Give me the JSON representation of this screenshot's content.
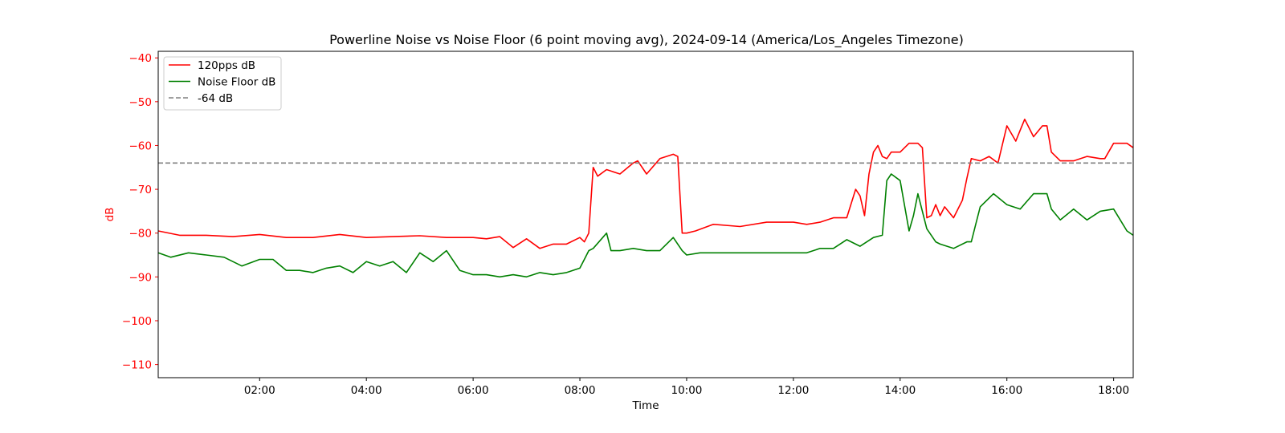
{
  "chart_data": {
    "type": "line",
    "title": "Powerline Noise vs Noise Floor (6 point moving avg), 2024-09-14 (America/Los_Angeles Timezone)",
    "xlabel": "Time",
    "ylabel": "dB",
    "xlim": [
      "00:06",
      "18:22"
    ],
    "ylim": [
      -113,
      -38.5
    ],
    "x_ticks": [
      "02:00",
      "04:00",
      "06:00",
      "08:00",
      "10:00",
      "12:00",
      "14:00",
      "16:00",
      "18:00"
    ],
    "y_ticks": [
      -40,
      -50,
      -60,
      -70,
      -80,
      -90,
      -100,
      -110
    ],
    "grid": false,
    "legend": "upper-left",
    "colors": {
      "ylabel_and_yticks": "#ff0000",
      "frame": "#000000"
    },
    "series": [
      {
        "name": "120pps dB",
        "color": "#ff0000",
        "style": "solid",
        "x": [
          "00:06",
          "00:30",
          "01:00",
          "01:30",
          "02:00",
          "02:30",
          "03:00",
          "03:30",
          "04:00",
          "04:30",
          "05:00",
          "05:30",
          "06:00",
          "06:15",
          "06:30",
          "06:45",
          "07:00",
          "07:15",
          "07:30",
          "07:45",
          "08:00",
          "08:05",
          "08:10",
          "08:15",
          "08:20",
          "08:30",
          "08:45",
          "09:00",
          "09:05",
          "09:15",
          "09:30",
          "09:45",
          "09:50",
          "09:55",
          "10:00",
          "10:10",
          "10:30",
          "11:00",
          "11:30",
          "12:00",
          "12:15",
          "12:30",
          "12:45",
          "13:00",
          "13:10",
          "13:15",
          "13:20",
          "13:25",
          "13:30",
          "13:35",
          "13:40",
          "13:45",
          "13:50",
          "14:00",
          "14:10",
          "14:20",
          "14:25",
          "14:30",
          "14:35",
          "14:40",
          "14:45",
          "14:50",
          "15:00",
          "15:10",
          "15:15",
          "15:20",
          "15:30",
          "15:40",
          "15:50",
          "16:00",
          "16:10",
          "16:15",
          "16:20",
          "16:30",
          "16:40",
          "16:45",
          "16:50",
          "17:00",
          "17:15",
          "17:30",
          "17:45",
          "17:50",
          "18:00",
          "18:15",
          "18:22"
        ],
        "y": [
          -79.5,
          -80.5,
          -80.5,
          -80.8,
          -80.3,
          -81,
          -81,
          -80.3,
          -81,
          -80.8,
          -80.6,
          -81,
          -81,
          -81.3,
          -80.8,
          -83.3,
          -81.3,
          -83.5,
          -82.5,
          -82.5,
          -81,
          -82,
          -80,
          -65,
          -67,
          -65.5,
          -66.5,
          -64,
          -63.5,
          -66.5,
          -63,
          -62,
          -62.5,
          -80,
          -80,
          -79.5,
          -78,
          -78.5,
          -77.5,
          -77.5,
          -78,
          -77.5,
          -76.5,
          -76.5,
          -70,
          -71.5,
          -76,
          -66.5,
          -61.5,
          -60,
          -62.5,
          -63,
          -61.5,
          -61.5,
          -59.5,
          -59.5,
          -60.5,
          -76.5,
          -76,
          -73.5,
          -76,
          -74,
          -76.5,
          -72.5,
          -67.5,
          -63,
          -63.5,
          -62.5,
          -64,
          -55.5,
          -59,
          -56.5,
          -54,
          -58,
          -55.5,
          -55.5,
          -61.5,
          -63.5,
          -63.5,
          -62.5,
          -63,
          -63,
          -59.5,
          -59.5,
          -60.5
        ]
      },
      {
        "name": "Noise Floor dB",
        "color": "#008000",
        "style": "solid",
        "x": [
          "00:06",
          "00:20",
          "00:40",
          "01:00",
          "01:20",
          "01:40",
          "02:00",
          "02:15",
          "02:30",
          "02:45",
          "03:00",
          "03:15",
          "03:30",
          "03:45",
          "04:00",
          "04:15",
          "04:30",
          "04:45",
          "05:00",
          "05:15",
          "05:30",
          "05:45",
          "06:00",
          "06:15",
          "06:30",
          "06:45",
          "07:00",
          "07:15",
          "07:30",
          "07:45",
          "08:00",
          "08:05",
          "08:10",
          "08:15",
          "08:30",
          "08:35",
          "08:45",
          "09:00",
          "09:15",
          "09:30",
          "09:45",
          "09:55",
          "10:00",
          "10:15",
          "10:30",
          "11:00",
          "12:00",
          "12:15",
          "12:30",
          "12:45",
          "13:00",
          "13:15",
          "13:30",
          "13:40",
          "13:45",
          "13:50",
          "14:00",
          "14:10",
          "14:15",
          "14:20",
          "14:30",
          "14:40",
          "14:45",
          "15:00",
          "15:15",
          "15:20",
          "15:25",
          "15:30",
          "15:45",
          "16:00",
          "16:15",
          "16:30",
          "16:45",
          "16:50",
          "17:00",
          "17:15",
          "17:30",
          "17:45",
          "18:00",
          "18:15",
          "18:22"
        ],
        "y": [
          -84.5,
          -85.5,
          -84.5,
          -85,
          -85.5,
          -87.5,
          -86,
          -86,
          -88.5,
          -88.5,
          -89,
          -88,
          -87.5,
          -89,
          -86.5,
          -87.5,
          -86.5,
          -89,
          -84.5,
          -86.5,
          -84,
          -88.5,
          -89.5,
          -89.5,
          -90,
          -89.5,
          -90,
          -89,
          -89.5,
          -89,
          -88,
          -86,
          -84,
          -83.5,
          -80,
          -84,
          -84,
          -83.5,
          -84,
          -84,
          -81,
          -84,
          -85,
          -84.5,
          -84.5,
          -84.5,
          -84.5,
          -84.5,
          -83.5,
          -83.5,
          -81.5,
          -83,
          -81,
          -80.5,
          -68,
          -66.5,
          -68,
          -79.5,
          -76,
          -71,
          -79,
          -82,
          -82.5,
          -83.5,
          -82,
          -82,
          -78,
          -74,
          -71,
          -73.5,
          -74.5,
          -71,
          -71,
          -74.5,
          -77,
          -74.5,
          -77,
          -75,
          -74.5,
          -79.5,
          -80.5
        ]
      },
      {
        "name": "-64 dB",
        "color": "#808080",
        "style": "dashed",
        "y_constant": -64
      }
    ]
  }
}
